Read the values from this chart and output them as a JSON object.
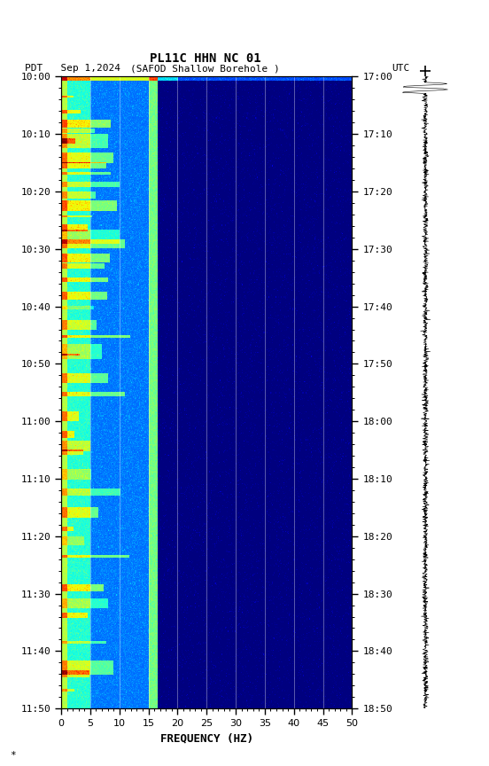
{
  "title_line1": "PL11C HHN NC 01",
  "title_line2_left": "PDT   Sep 1,2024",
  "title_line2_center": "(SAFOD Shallow Borehole )",
  "title_line2_right": "UTC",
  "xlabel": "FREQUENCY (HZ)",
  "freq_min": 0,
  "freq_max": 50,
  "pdt_ticks": [
    "10:00",
    "10:10",
    "10:20",
    "10:30",
    "10:40",
    "10:50",
    "11:00",
    "11:10",
    "11:20",
    "11:30",
    "11:40",
    "11:50"
  ],
  "utc_ticks": [
    "17:00",
    "17:10",
    "17:20",
    "17:30",
    "17:40",
    "17:50",
    "18:00",
    "18:10",
    "18:20",
    "18:30",
    "18:40",
    "18:50"
  ],
  "background_color": "#ffffff",
  "fig_width": 5.52,
  "fig_height": 8.64,
  "dpi": 100,
  "n_time": 660,
  "n_freq": 500,
  "seed": 42,
  "vertical_lines_freq": [
    5,
    10,
    15,
    20,
    25,
    30,
    35,
    40,
    45
  ],
  "freq_ticks": [
    0,
    5,
    10,
    15,
    20,
    25,
    30,
    35,
    40,
    45,
    50
  ],
  "watermark": "*",
  "vmin_log": -4.0,
  "vmax_log": 2.5
}
